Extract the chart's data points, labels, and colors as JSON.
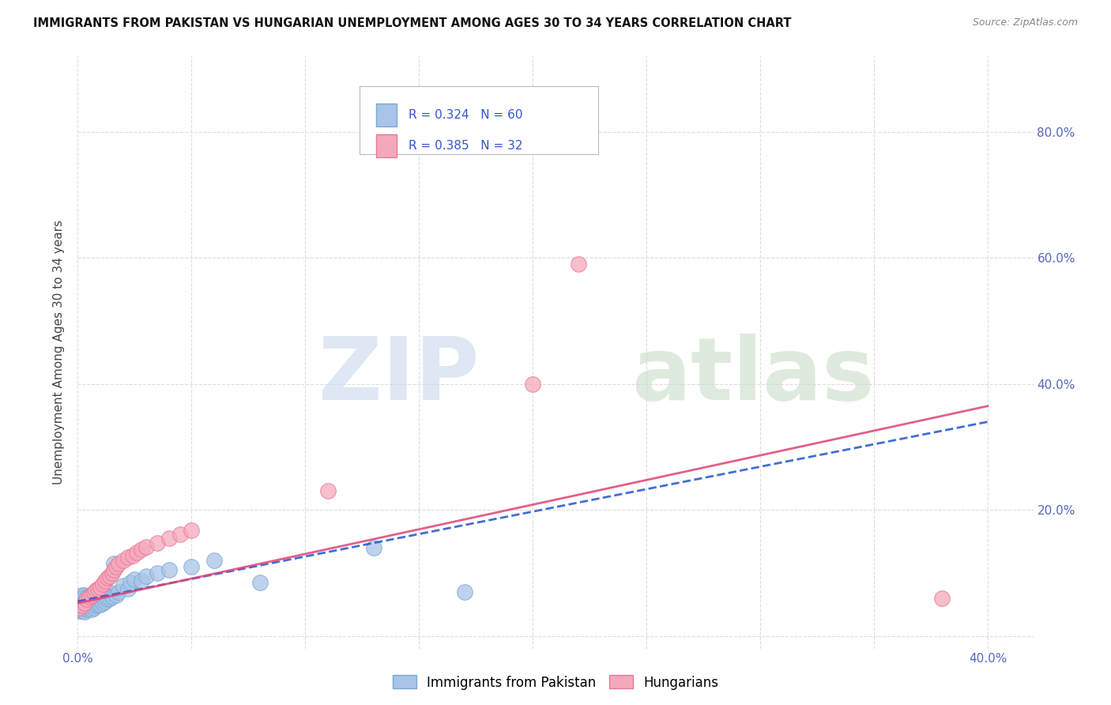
{
  "title": "IMMIGRANTS FROM PAKISTAN VS HUNGARIAN UNEMPLOYMENT AMONG AGES 30 TO 34 YEARS CORRELATION CHART",
  "source": "Source: ZipAtlas.com",
  "ylabel": "Unemployment Among Ages 30 to 34 years",
  "xlim": [
    0.0,
    0.42
  ],
  "ylim": [
    -0.02,
    0.92
  ],
  "pakistan_color": "#a8c4e8",
  "pakistan_edge_color": "#7aaad4",
  "hungarian_color": "#f5a8bc",
  "hungarian_edge_color": "#e87898",
  "pakistan_line_color": "#2255cc",
  "hungarian_line_color": "#dd4477",
  "pakistan_line_style": "--",
  "hungarian_line_style": "-",
  "pakistan_scatter_x": [
    0.001,
    0.001,
    0.001,
    0.001,
    0.002,
    0.002,
    0.002,
    0.002,
    0.003,
    0.003,
    0.003,
    0.003,
    0.003,
    0.004,
    0.004,
    0.004,
    0.004,
    0.005,
    0.005,
    0.005,
    0.005,
    0.006,
    0.006,
    0.006,
    0.006,
    0.007,
    0.007,
    0.007,
    0.008,
    0.008,
    0.008,
    0.009,
    0.009,
    0.01,
    0.01,
    0.01,
    0.011,
    0.011,
    0.012,
    0.012,
    0.013,
    0.014,
    0.014,
    0.015,
    0.016,
    0.017,
    0.018,
    0.02,
    0.022,
    0.023,
    0.025,
    0.028,
    0.03,
    0.035,
    0.04,
    0.05,
    0.06,
    0.08,
    0.13,
    0.17
  ],
  "pakistan_scatter_y": [
    0.04,
    0.045,
    0.055,
    0.06,
    0.04,
    0.05,
    0.06,
    0.065,
    0.038,
    0.045,
    0.055,
    0.06,
    0.065,
    0.042,
    0.048,
    0.055,
    0.062,
    0.045,
    0.05,
    0.058,
    0.062,
    0.042,
    0.05,
    0.058,
    0.065,
    0.045,
    0.055,
    0.062,
    0.048,
    0.055,
    0.062,
    0.05,
    0.06,
    0.05,
    0.058,
    0.065,
    0.052,
    0.062,
    0.055,
    0.065,
    0.058,
    0.06,
    0.068,
    0.062,
    0.115,
    0.065,
    0.07,
    0.08,
    0.075,
    0.085,
    0.09,
    0.088,
    0.095,
    0.1,
    0.105,
    0.11,
    0.12,
    0.085,
    0.14,
    0.07
  ],
  "hungarian_scatter_x": [
    0.001,
    0.002,
    0.003,
    0.004,
    0.005,
    0.006,
    0.007,
    0.008,
    0.009,
    0.01,
    0.011,
    0.012,
    0.013,
    0.014,
    0.015,
    0.016,
    0.017,
    0.018,
    0.02,
    0.022,
    0.024,
    0.026,
    0.028,
    0.03,
    0.035,
    0.04,
    0.045,
    0.05,
    0.11,
    0.2,
    0.22,
    0.38
  ],
  "hungarian_scatter_y": [
    0.045,
    0.048,
    0.052,
    0.058,
    0.062,
    0.065,
    0.068,
    0.072,
    0.075,
    0.078,
    0.082,
    0.088,
    0.092,
    0.095,
    0.1,
    0.105,
    0.11,
    0.115,
    0.12,
    0.125,
    0.128,
    0.132,
    0.138,
    0.142,
    0.148,
    0.155,
    0.162,
    0.168,
    0.23,
    0.4,
    0.59,
    0.06
  ],
  "pak_line_x0": 0.0,
  "pak_line_y0": 0.055,
  "pak_line_x1": 0.4,
  "pak_line_y1": 0.34,
  "hun_line_x0": 0.0,
  "hun_line_y0": 0.052,
  "hun_line_x1": 0.4,
  "hun_line_y1": 0.365,
  "yticks": [
    0.0,
    0.2,
    0.4,
    0.6,
    0.8
  ],
  "ytick_labels": [
    "",
    "20.0%",
    "40.0%",
    "60.0%",
    "80.0%"
  ],
  "xtick_labels_show": [
    "0.0%",
    "40.0%"
  ],
  "grid_color": "#dddddd",
  "grid_style": "--"
}
